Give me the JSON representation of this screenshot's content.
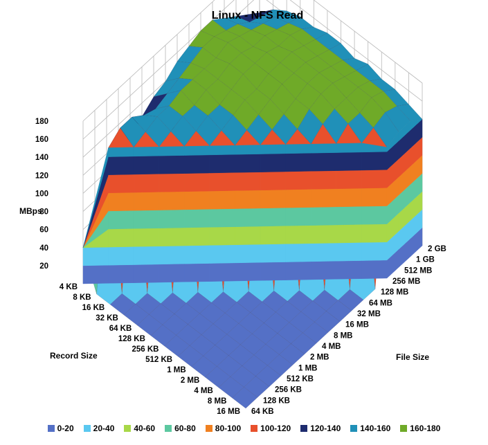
{
  "chart_data": {
    "type": "surface",
    "title": "Linux - NFS Read",
    "zlabel": "MBps",
    "xlabel": "Record Size",
    "ylabel": "File Size",
    "zlim": [
      0,
      180
    ],
    "z_ticks": [
      "180",
      "160",
      "140",
      "120",
      "100",
      "80",
      "60",
      "40",
      "20"
    ],
    "record_sizes": [
      "4 KB",
      "8 KB",
      "16 KB",
      "32 KB",
      "64 KB",
      "128 KB",
      "256 KB",
      "512 KB",
      "1 MB",
      "2 MB",
      "4 MB",
      "8 MB",
      "16 MB"
    ],
    "file_sizes": [
      "64 KB",
      "128 KB",
      "256 KB",
      "512 KB",
      "1 MB",
      "2 MB",
      "4 MB",
      "8 MB",
      "16 MB",
      "32 MB",
      "64 MB",
      "128 MB",
      "256 MB",
      "512 MB",
      "1 GB",
      "2 GB"
    ],
    "values": [
      [
        40,
        60,
        80,
        100,
        115,
        125,
        135,
        140,
        150,
        155,
        160,
        160,
        150,
        140,
        130,
        120
      ],
      [
        0,
        150,
        160,
        160,
        150,
        145,
        150,
        155,
        160,
        165,
        165,
        160,
        155,
        145,
        140,
        135
      ],
      [
        0,
        0,
        150,
        155,
        160,
        160,
        165,
        165,
        165,
        165,
        170,
        165,
        160,
        155,
        150,
        145
      ],
      [
        0,
        0,
        0,
        150,
        155,
        160,
        160,
        165,
        165,
        170,
        170,
        165,
        165,
        160,
        155,
        150
      ],
      [
        0,
        0,
        0,
        0,
        150,
        155,
        160,
        160,
        165,
        170,
        170,
        170,
        165,
        165,
        160,
        150
      ],
      [
        0,
        0,
        0,
        0,
        0,
        150,
        155,
        160,
        165,
        165,
        170,
        170,
        170,
        165,
        160,
        155
      ],
      [
        0,
        0,
        0,
        0,
        0,
        0,
        150,
        155,
        160,
        165,
        170,
        170,
        170,
        165,
        160,
        155
      ],
      [
        0,
        0,
        0,
        0,
        0,
        0,
        0,
        150,
        155,
        160,
        165,
        170,
        170,
        165,
        160,
        150
      ],
      [
        0,
        0,
        0,
        0,
        0,
        0,
        0,
        0,
        150,
        155,
        165,
        170,
        170,
        165,
        160,
        155
      ],
      [
        0,
        0,
        0,
        0,
        0,
        0,
        0,
        0,
        0,
        150,
        160,
        165,
        165,
        165,
        160,
        150
      ],
      [
        0,
        0,
        0,
        0,
        0,
        0,
        0,
        0,
        0,
        0,
        150,
        160,
        160,
        165,
        160,
        150
      ],
      [
        0,
        0,
        0,
        0,
        0,
        0,
        0,
        0,
        0,
        0,
        0,
        150,
        155,
        160,
        155,
        145
      ],
      [
        0,
        0,
        0,
        0,
        0,
        0,
        0,
        0,
        0,
        0,
        0,
        0,
        145,
        150,
        150,
        140
      ]
    ],
    "legend": [
      {
        "label": "0-20",
        "color": "#5470C6"
      },
      {
        "label": "20-40",
        "color": "#5AC8F0"
      },
      {
        "label": "40-60",
        "color": "#A8D848"
      },
      {
        "label": "60-80",
        "color": "#5CC8A0"
      },
      {
        "label": "80-100",
        "color": "#F08020"
      },
      {
        "label": "100-120",
        "color": "#E8502C"
      },
      {
        "label": "120-140",
        "color": "#1E2C6E"
      },
      {
        "label": "140-160",
        "color": "#2090B8"
      },
      {
        "label": "160-180",
        "color": "#6FAA28"
      }
    ]
  }
}
